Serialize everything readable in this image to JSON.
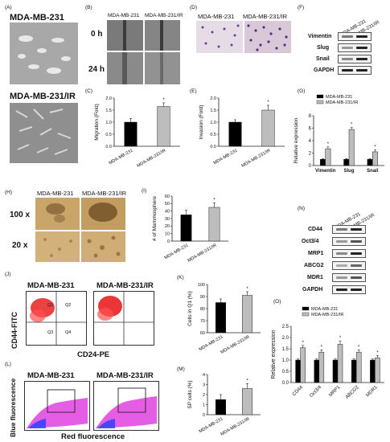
{
  "panels": {
    "A": {
      "label": "(A)",
      "top_title": "MDA-MB-231",
      "bottom_title": "MDA-MB-231/IR"
    },
    "B": {
      "label": "(B)",
      "col1": "MDA-MB-231",
      "col2": "MDA-MB-231/IR",
      "row1": "0 h",
      "row2": "24 h"
    },
    "C": {
      "label": "(C)"
    },
    "D": {
      "label": "(D)",
      "col1": "MDA-MB-231",
      "col2": "MDA-MB-231/IR"
    },
    "E": {
      "label": "(E)"
    },
    "F": {
      "label": "(F)",
      "col1": "MDA-MB-231",
      "col2": "MDA-MB-231/IR",
      "rows": [
        "Vimentin",
        "Slug",
        "Snail",
        "GAPDH"
      ]
    },
    "G": {
      "label": "(G)"
    },
    "H": {
      "label": "(H)",
      "col1": "MDA-MB-231",
      "col2": "MDA-MB-231/IR",
      "row1": "100 x",
      "row2": "20 x"
    },
    "I": {
      "label": "(I)"
    },
    "J": {
      "label": "(J)",
      "col1": "MDA-MB-231",
      "col2": "MDA-MB-231/IR",
      "ylabel": "CD44-FITC",
      "xlabel": "CD24-PE",
      "quadrants": [
        "Q1",
        "Q2",
        "Q3",
        "Q4"
      ]
    },
    "K": {
      "label": "(K)"
    },
    "L": {
      "label": "(L)",
      "col1": "MDA-MB-231",
      "col2": "MDA-MB-231/IR",
      "ylabel": "Blue fluorescence",
      "xlabel": "Red fluorescence"
    },
    "M": {
      "label": "(M)"
    },
    "N": {
      "label": "(N)",
      "col1": "MDA-MB-231",
      "col2": "MDA-MB-231/IR",
      "rows": [
        "CD44",
        "Oct3/4",
        "MRP1",
        "ABCG2",
        "MDR1",
        "GAPDH"
      ]
    },
    "O": {
      "label": "(O)"
    }
  },
  "colors": {
    "black_bar": "#000000",
    "gray_bar": "#bdbdbd",
    "plate": "#c9a56a",
    "phase": "#9c9c9c"
  },
  "chart_data": [
    {
      "id": "C",
      "type": "bar",
      "categories": [
        "MDA-MB-231",
        "MDA-MB-231/IR"
      ],
      "values": [
        1.0,
        1.65
      ],
      "errors": [
        0.15,
        0.15
      ],
      "ylabel": "Migration (Fold)",
      "ylim": [
        0,
        2.0
      ],
      "yticks": [
        "0.0",
        "0.5",
        "1.0",
        "1.5",
        "2.0"
      ],
      "significance": [
        "",
        "*"
      ]
    },
    {
      "id": "E",
      "type": "bar",
      "categories": [
        "MDA-MB-231",
        "MDA-MB-231/IR"
      ],
      "values": [
        1.0,
        1.5
      ],
      "errors": [
        0.1,
        0.2
      ],
      "ylabel": "Invasion (Fold)",
      "ylim": [
        0,
        2.0
      ],
      "yticks": [
        "0.0",
        "0.5",
        "1.0",
        "1.5",
        "2.0"
      ],
      "significance": [
        "",
        "*"
      ]
    },
    {
      "id": "G",
      "type": "bar",
      "categories": [
        "Vimentin",
        "Slug",
        "Snail"
      ],
      "series": [
        {
          "name": "MDA-MB-231",
          "values": [
            1.0,
            1.0,
            1.0
          ],
          "errors": [
            0.1,
            0.1,
            0.1
          ]
        },
        {
          "name": "MDA-MB-231/IR",
          "values": [
            2.7,
            5.8,
            2.2
          ],
          "errors": [
            0.3,
            0.3,
            0.3
          ]
        }
      ],
      "ylabel": "Relative expression",
      "ylim": [
        0,
        8
      ],
      "yticks": [
        "0",
        "2",
        "4",
        "6",
        "8"
      ],
      "significance": [
        "*",
        "*",
        "*"
      ],
      "legend": "top-left"
    },
    {
      "id": "I",
      "type": "bar",
      "categories": [
        "MDA-MB-231",
        "MDA-MB-231/IR"
      ],
      "values": [
        35,
        45
      ],
      "errors": [
        6,
        6
      ],
      "ylabel": "# of Mammosphere",
      "ylim": [
        0,
        60
      ],
      "yticks": [
        "0",
        "10",
        "20",
        "30",
        "40",
        "50",
        "60"
      ],
      "significance": [
        "",
        "*"
      ]
    },
    {
      "id": "K",
      "type": "bar",
      "categories": [
        "MDA-MB-231",
        "MDA-MB-231/IR"
      ],
      "values": [
        85,
        91
      ],
      "errors": [
        3,
        3
      ],
      "ylabel": "Cells in Q1 (%)",
      "ylim": [
        60,
        100
      ],
      "yticks": [
        "60",
        "70",
        "80",
        "90",
        "100"
      ],
      "significance": [
        "",
        "*"
      ]
    },
    {
      "id": "M",
      "type": "bar",
      "categories": [
        "MDA-MB-231",
        "MDA-MB-231/IR"
      ],
      "values": [
        1.5,
        2.6
      ],
      "errors": [
        0.5,
        0.5
      ],
      "ylabel": "SP cells (%)",
      "ylim": [
        0,
        4
      ],
      "yticks": [
        "0",
        "1",
        "2",
        "3",
        "4"
      ],
      "significance": [
        "",
        "*"
      ]
    },
    {
      "id": "O",
      "type": "bar",
      "categories": [
        "CD44",
        "Oct3/4",
        "MRP1",
        "ABCG2",
        "MDR1"
      ],
      "series": [
        {
          "name": "MDA-MB-231",
          "values": [
            1.0,
            1.0,
            1.0,
            1.0,
            1.0
          ],
          "errors": [
            0.05,
            0.05,
            0.05,
            0.05,
            0.05
          ]
        },
        {
          "name": "MDA-MB-231/IR",
          "values": [
            1.55,
            1.35,
            1.7,
            1.35,
            1.1
          ],
          "errors": [
            0.1,
            0.1,
            0.15,
            0.1,
            0.1
          ]
        }
      ],
      "ylabel": "Relative expression",
      "ylim": [
        0,
        2.5
      ],
      "yticks": [
        "0.0",
        "0.5",
        "1.0",
        "1.5",
        "2.0",
        "2.5"
      ],
      "significance": [
        "*",
        "*",
        "*",
        "*",
        "*"
      ],
      "legend": "top"
    }
  ]
}
